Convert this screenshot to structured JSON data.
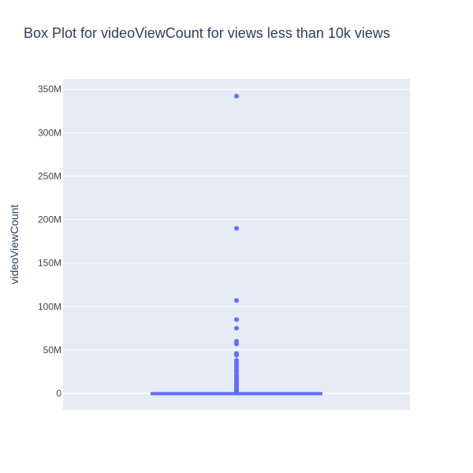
{
  "chart_data": {
    "type": "box",
    "title": "Box Plot for videoViewCount for views less than 10k views",
    "xlabel": "",
    "ylabel": "videoViewCount",
    "ylim": [
      -19000000,
      362000000
    ],
    "yticks": [
      0,
      50000000,
      100000000,
      150000000,
      200000000,
      250000000,
      300000000,
      350000000
    ],
    "ytick_labels": [
      "0",
      "50M",
      "100M",
      "150M",
      "200M",
      "250M",
      "300M",
      "350M"
    ],
    "grid": true,
    "legend": "none",
    "box": {
      "min": 0,
      "q1": 0,
      "median": 0,
      "q3": 200000,
      "upper_fence": 700000
    },
    "outliers": [
      342000000,
      190000000,
      107000000,
      85000000,
      75000000,
      60000000,
      57000000,
      46000000,
      44000000,
      38000000,
      36000000,
      34000000,
      31000000,
      29000000,
      27000000,
      25000000,
      22000000,
      20000000,
      18000000,
      16000000,
      14000000,
      12000000,
      10000000,
      8500000,
      7000000,
      5500000,
      4500000,
      3500000,
      2800000,
      2200000,
      1700000,
      1300000,
      1000000
    ],
    "colors": {
      "series": "#636efa",
      "plot_bg": "#e5ecf6",
      "grid": "#ffffff",
      "text": "#2a3f5f",
      "tick_text": "#444444"
    }
  }
}
